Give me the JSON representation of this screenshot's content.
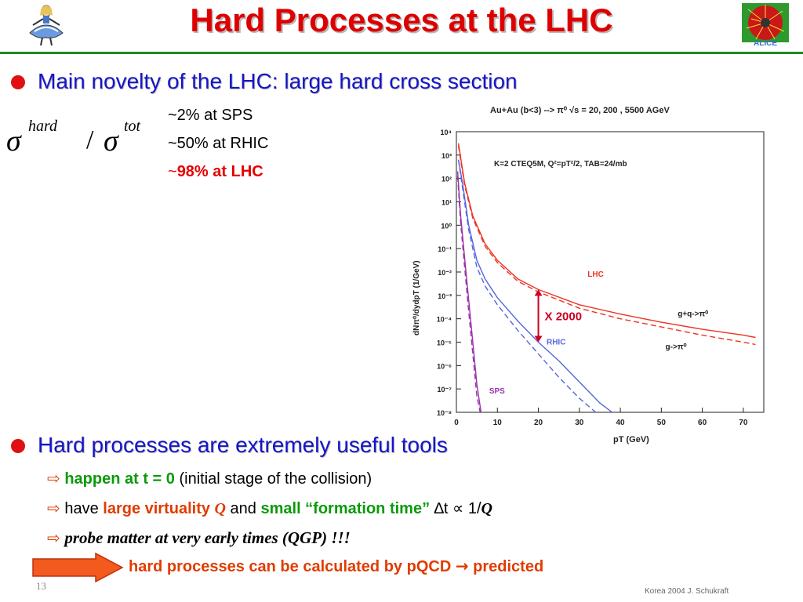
{
  "header": {
    "title": "Hard Processes at the LHC"
  },
  "logos": {
    "left": "alice-in-wonderland-figure",
    "right": "ALICE"
  },
  "bullet1": {
    "heading": "Main novelty of the LHC: large hard cross section",
    "formula": {
      "sym": "σ",
      "sup1": "hard",
      "slash": "/",
      "sup2": "tot"
    },
    "rows": [
      {
        "text": "~2% at SPS",
        "style": "plain"
      },
      {
        "text": "~50% at RHIC",
        "style": "plain"
      },
      {
        "tilde": "~",
        "text": "98% at LHC",
        "style": "red"
      }
    ]
  },
  "chart_data": {
    "type": "line",
    "title": "Au+Au (b<3) --> π⁰  √s = 20, 200 , 5500 AGeV",
    "subtitle": "K=2 CTEQ5M,  Q²=pT²/2, TAB=24/mb",
    "xlabel": "pT (GeV)",
    "ylabel": "dNπ⁰/dydpT   (1/GeV)",
    "xlim": [
      0,
      75
    ],
    "xticks": [
      "0",
      "10",
      "20",
      "30",
      "40",
      "50",
      "60",
      "70"
    ],
    "ylim_log10": [
      -8,
      4
    ],
    "yticks": [
      "10⁴",
      "10³",
      "10²",
      "10¹",
      "10⁰",
      "10⁻¹",
      "10⁻²",
      "10⁻³",
      "10⁻⁴",
      "10⁻⁵",
      "10⁻⁶",
      "10⁻⁷",
      "10⁻⁸"
    ],
    "curve_labels": {
      "lhc": "LHC",
      "rhic": "RHIC",
      "sps": "SPS",
      "full": "g+q->π⁰",
      "gluon": "g->π⁰"
    },
    "annotation": "X 2000",
    "colors": {
      "lhc": "#ee3322",
      "rhic": "#5566dd",
      "sps": "#9933aa",
      "annotation": "#cc0022"
    },
    "series": [
      {
        "name": "LHC",
        "style": "solid",
        "x": [
          0.5,
          2,
          4,
          7,
          10,
          15,
          20,
          30,
          40,
          50,
          60,
          70,
          73
        ],
        "y": [
          3.5,
          1.8,
          0.4,
          -0.8,
          -1.5,
          -2.3,
          -2.75,
          -3.4,
          -3.8,
          -4.15,
          -4.45,
          -4.7,
          -4.8
        ]
      },
      {
        "name": "LHC",
        "style": "dashed",
        "x": [
          0.5,
          2,
          4,
          7,
          10,
          15,
          20,
          30,
          40,
          50,
          60,
          70,
          73
        ],
        "y": [
          3.4,
          1.7,
          0.3,
          -0.9,
          -1.6,
          -2.4,
          -2.85,
          -3.55,
          -4.0,
          -4.35,
          -4.7,
          -5.0,
          -5.1
        ]
      },
      {
        "name": "RHIC",
        "style": "solid",
        "x": [
          0.5,
          1.5,
          3,
          5,
          7,
          10,
          15,
          20,
          25,
          30,
          35,
          38
        ],
        "y": [
          2.8,
          1.8,
          0.0,
          -1.5,
          -2.3,
          -3.1,
          -4.1,
          -5.0,
          -5.8,
          -6.7,
          -7.6,
          -8.0
        ]
      },
      {
        "name": "RHIC",
        "style": "dashed",
        "x": [
          0.5,
          1.5,
          3,
          5,
          7,
          10,
          15,
          20,
          25,
          30,
          34
        ],
        "y": [
          2.8,
          1.6,
          -0.2,
          -1.8,
          -2.6,
          -3.4,
          -4.5,
          -5.5,
          -6.5,
          -7.4,
          -8.0
        ]
      },
      {
        "name": "SPS",
        "style": "solid",
        "x": [
          0.3,
          1,
          2,
          3,
          4,
          5,
          6
        ],
        "y": [
          2.3,
          0.5,
          -1.4,
          -3.2,
          -5.0,
          -6.8,
          -8.0
        ]
      },
      {
        "name": "SPS",
        "style": "dashed",
        "x": [
          0.3,
          1,
          2,
          3,
          4,
          5,
          5.8
        ],
        "y": [
          2.1,
          0.2,
          -1.8,
          -3.7,
          -5.5,
          -7.3,
          -8.0
        ]
      }
    ]
  },
  "bullet2": {
    "heading": "Hard processes are extremely useful tools",
    "items": [
      {
        "green": "happen at t = 0",
        "rest": " (initial stage of the collision)"
      },
      {
        "pre": "have ",
        "orange": "large virtuality ",
        "q": "Q",
        "mid": " and ",
        "green": "small “formation time”",
        "delta": "  ∆t ∝ 1/",
        "q2": "Q"
      },
      {
        "italic": "probe matter at very early times (QGP) !!!"
      }
    ],
    "conclusion": {
      "text": "hard processes can be calculated by pQCD ",
      "arrow": "→",
      "predicted": " predicted"
    }
  },
  "footer": {
    "page": "13",
    "credit": "Korea 2004  J. Schukraft"
  }
}
